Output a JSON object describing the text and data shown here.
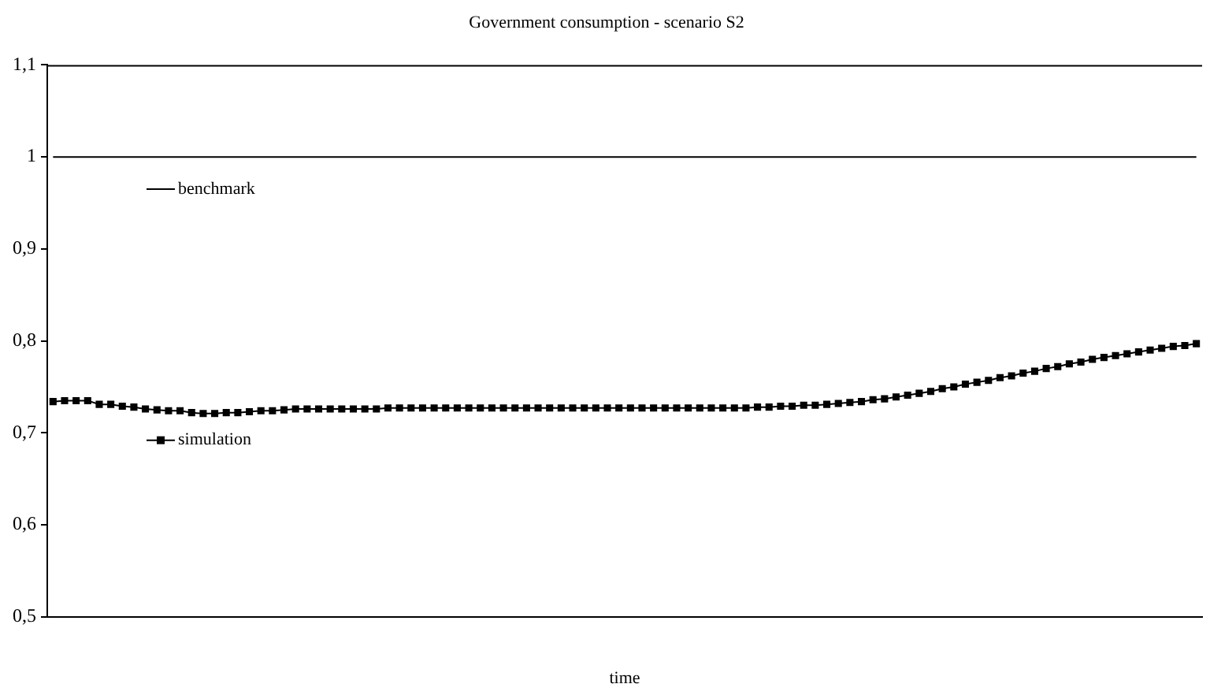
{
  "chart_data": {
    "type": "line",
    "title": "Government consumption - scenario S2",
    "xlabel": "time",
    "categories": [
      null,
      null,
      null,
      null,
      null,
      null,
      null,
      null,
      null,
      null,
      null,
      null,
      null,
      null,
      null,
      null,
      null,
      null,
      null,
      null,
      null,
      null,
      null,
      null,
      null,
      null,
      null,
      null,
      null,
      null,
      null,
      null,
      null,
      null,
      null,
      null,
      null,
      null,
      null,
      null,
      null,
      null,
      null,
      null,
      null,
      null,
      null,
      null,
      null,
      null,
      null,
      null,
      null,
      null,
      null,
      null,
      null,
      null,
      null,
      null,
      null,
      null,
      null,
      null,
      null,
      null,
      null,
      null,
      null,
      null,
      null,
      null,
      null,
      null,
      null,
      null,
      null,
      null,
      null,
      null,
      null,
      null,
      null,
      null,
      null,
      null,
      null,
      null,
      null,
      null,
      null,
      null,
      null,
      null,
      null,
      null,
      null,
      null,
      null,
      null
    ],
    "series": [
      {
        "name": "benchmark",
        "color": "#000000",
        "marker": "none",
        "values": [
          1,
          1,
          1,
          1,
          1,
          1,
          1,
          1,
          1,
          1,
          1,
          1,
          1,
          1,
          1,
          1,
          1,
          1,
          1,
          1,
          1,
          1,
          1,
          1,
          1,
          1,
          1,
          1,
          1,
          1,
          1,
          1,
          1,
          1,
          1,
          1,
          1,
          1,
          1,
          1,
          1,
          1,
          1,
          1,
          1,
          1,
          1,
          1,
          1,
          1,
          1,
          1,
          1,
          1,
          1,
          1,
          1,
          1,
          1,
          1,
          1,
          1,
          1,
          1,
          1,
          1,
          1,
          1,
          1,
          1,
          1,
          1,
          1,
          1,
          1,
          1,
          1,
          1,
          1,
          1,
          1,
          1,
          1,
          1,
          1,
          1,
          1,
          1,
          1,
          1,
          1,
          1,
          1,
          1,
          1,
          1,
          1,
          1,
          1,
          1
        ]
      },
      {
        "name": "simulation",
        "color": "#000000",
        "marker": "square",
        "values": [
          0.734,
          0.735,
          0.735,
          0.735,
          0.731,
          0.731,
          0.729,
          0.728,
          0.726,
          0.725,
          0.724,
          0.724,
          0.722,
          0.721,
          0.721,
          0.722,
          0.722,
          0.723,
          0.724,
          0.724,
          0.725,
          0.726,
          0.726,
          0.726,
          0.726,
          0.726,
          0.726,
          0.726,
          0.726,
          0.727,
          0.727,
          0.727,
          0.727,
          0.727,
          0.727,
          0.727,
          0.727,
          0.727,
          0.727,
          0.727,
          0.727,
          0.727,
          0.727,
          0.727,
          0.727,
          0.727,
          0.727,
          0.727,
          0.727,
          0.727,
          0.727,
          0.727,
          0.727,
          0.727,
          0.727,
          0.727,
          0.727,
          0.727,
          0.727,
          0.727,
          0.727,
          0.728,
          0.728,
          0.729,
          0.729,
          0.73,
          0.73,
          0.731,
          0.732,
          0.733,
          0.734,
          0.736,
          0.737,
          0.739,
          0.741,
          0.743,
          0.745,
          0.748,
          0.75,
          0.753,
          0.755,
          0.757,
          0.76,
          0.762,
          0.765,
          0.767,
          0.77,
          0.772,
          0.775,
          0.777,
          0.78,
          0.782,
          0.784,
          0.786,
          0.788,
          0.79,
          0.792,
          0.794,
          0.795,
          0.797
        ]
      }
    ],
    "ylim": [
      0.5,
      1.1
    ],
    "yticks": [
      {
        "value": 0.5,
        "label": "0,5"
      },
      {
        "value": 0.6,
        "label": "0,6"
      },
      {
        "value": 0.7,
        "label": "0,7"
      },
      {
        "value": 0.8,
        "label": "0,8"
      },
      {
        "value": 0.9,
        "label": "0,9"
      },
      1,
      {
        "value": 1.1,
        "label": "1,1"
      }
    ],
    "grid": false,
    "legend": "left",
    "line_style": "solid"
  }
}
